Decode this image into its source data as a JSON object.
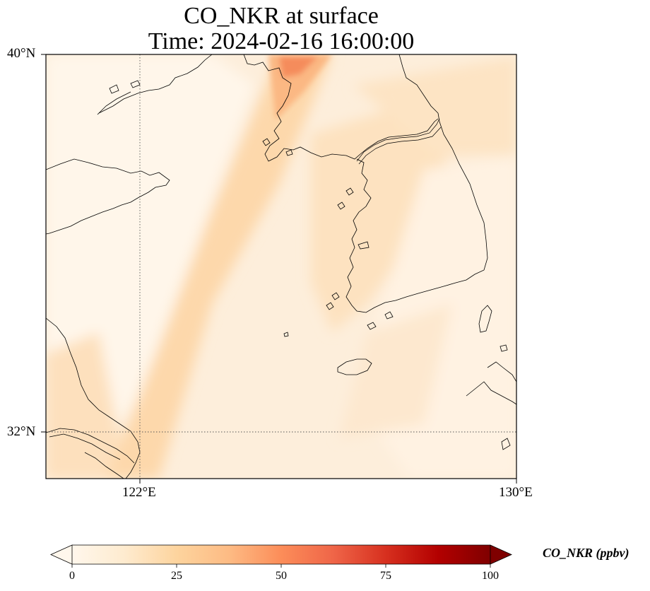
{
  "title": {
    "line1": "CO_NKR at surface",
    "line2": "Time: 2024-02-16 16:00:00"
  },
  "axes": {
    "lat_ticks": [
      "40°N",
      "32°N"
    ],
    "lon_ticks": [
      "122°E",
      "130°E"
    ],
    "lat_range": [
      31,
      40
    ],
    "lon_range": [
      120,
      130
    ],
    "gridlines": [
      {
        "type": "lon",
        "value": 122
      },
      {
        "type": "lat",
        "value": 32
      }
    ]
  },
  "colorbar": {
    "label": "CO_NKR (ppbv)",
    "ticks": [
      "0",
      "25",
      "50",
      "75",
      "100"
    ],
    "range": [
      0,
      100
    ],
    "colormap": "OrRd",
    "extend": "both"
  },
  "chart_data": {
    "type": "heatmap",
    "title": "CO_NKR at surface\nTime: 2024-02-16 16:00:00",
    "variable": "CO_NKR",
    "units": "ppbv",
    "level": "surface",
    "time": "2024-02-16 16:00:00",
    "xlim": [
      120,
      130
    ],
    "ylim": [
      31,
      40
    ],
    "vmin": 0,
    "vmax": 100,
    "features": [
      {
        "region": "plume over NE Yellow Sea / Korea Bay",
        "lon": 125.8,
        "lat": 39.8,
        "value": 55
      },
      {
        "region": "plume near Dalian coast",
        "lon": 124.8,
        "lat": 39.0,
        "value": 35
      },
      {
        "region": "band over central Yellow Sea",
        "lon": 123.5,
        "lat": 36.0,
        "value": 25
      },
      {
        "region": "band over East China Sea",
        "lon": 122.5,
        "lat": 33.0,
        "value": 22
      },
      {
        "region": "west coast of Korea",
        "lon": 126.5,
        "lat": 36.5,
        "value": 20
      },
      {
        "region": "southern Korea interior",
        "lon": 128.0,
        "lat": 35.5,
        "value": 8
      },
      {
        "region": "western Yellow Sea",
        "lon": 121.5,
        "lat": 37.5,
        "value": 3
      }
    ]
  }
}
